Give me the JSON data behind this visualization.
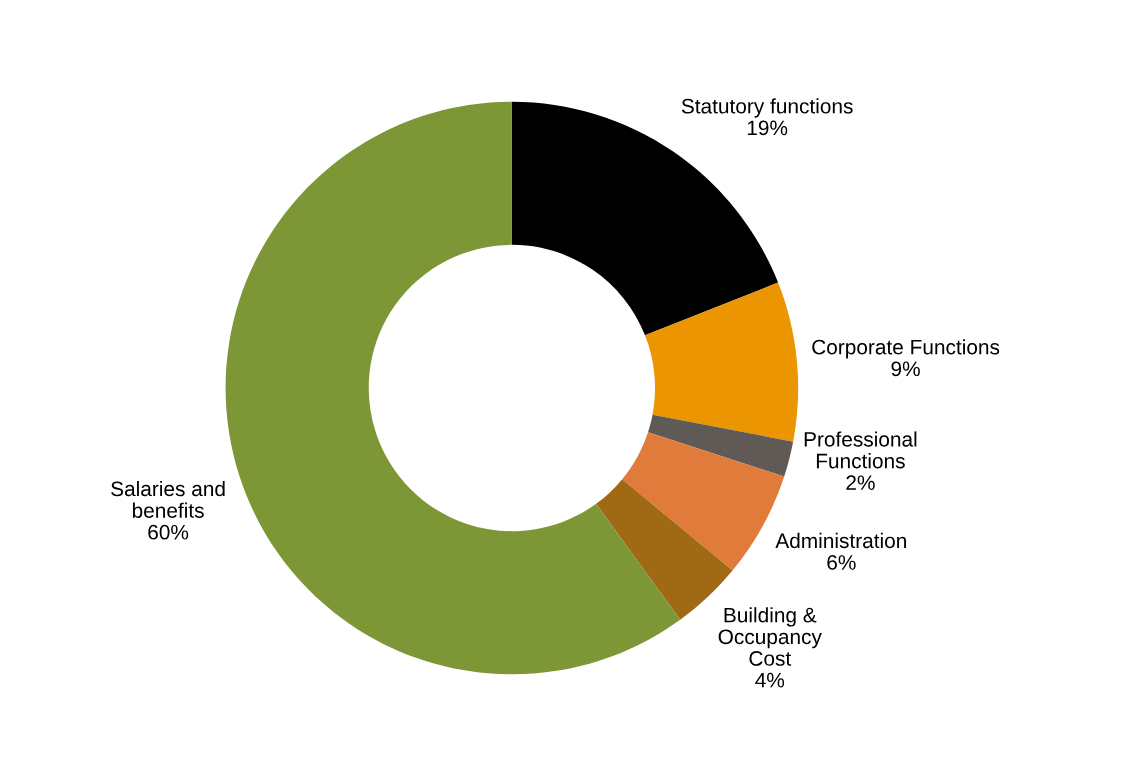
{
  "chart_data": {
    "type": "donut",
    "categories": [
      "Statutory functions",
      "Corporate Functions",
      "Professional\nFunctions",
      "Administration",
      "Building &\nOccupancy\nCost",
      "Salaries and\nbenefits"
    ],
    "values": [
      19,
      9,
      2,
      6,
      4,
      60
    ],
    "value_labels": [
      "19%",
      "9%",
      "2%",
      "6%",
      "4%",
      "60%"
    ],
    "colors": [
      "#000000",
      "#eb9500",
      "#5f5a55",
      "#e07b3c",
      "#a06a14",
      "#7d9636"
    ],
    "legend": false
  }
}
